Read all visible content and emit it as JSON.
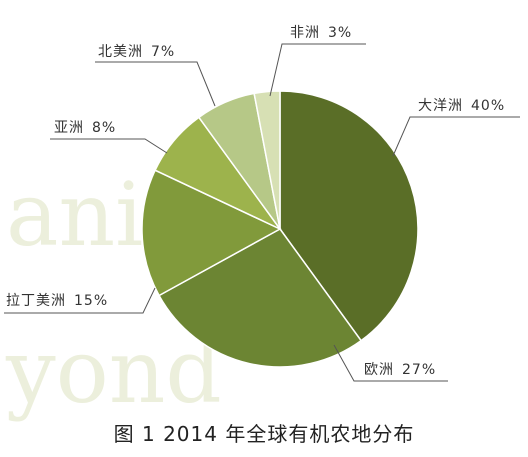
{
  "watermark": [
    "anic",
    "yond"
  ],
  "chart_data": {
    "type": "pie",
    "title": "图 1 2014 年全球有机农地分布",
    "slices": [
      {
        "label": "大洋洲",
        "value": 40,
        "text": "40%",
        "color": "#5a6e27"
      },
      {
        "label": "欧洲",
        "value": 27,
        "text": "27%",
        "color": "#6c8533"
      },
      {
        "label": "拉丁美洲",
        "value": 15,
        "text": "15%",
        "color": "#819a3b"
      },
      {
        "label": "亚洲",
        "value": 8,
        "text": "8%",
        "color": "#9db34c"
      },
      {
        "label": "北美洲",
        "value": 7,
        "text": "7%",
        "color": "#b6c887"
      },
      {
        "label": "非洲",
        "value": 3,
        "text": "3%",
        "color": "#d7e0b4"
      }
    ]
  }
}
